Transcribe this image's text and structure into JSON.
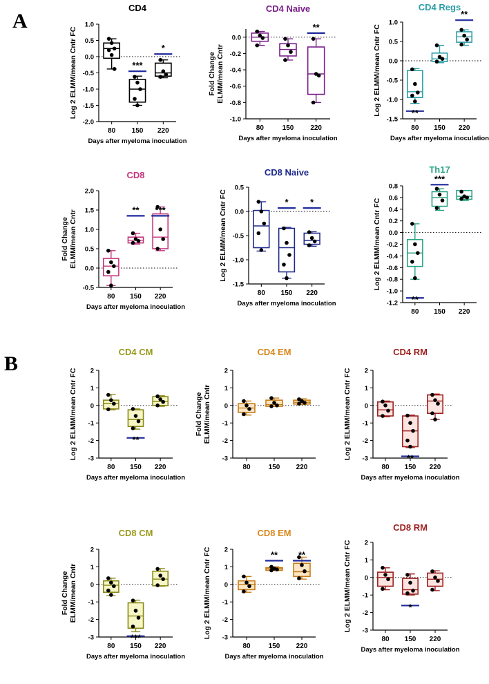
{
  "panel_labels": {
    "a": "A",
    "b": "B"
  },
  "chart_data": [
    {
      "type": "box",
      "title": "CD4",
      "title_color": "#000000",
      "box_color": "#000000",
      "fill": "#ffffff",
      "ylabel_lines": [
        "Log 2 ELMM/mean Cntr FC"
      ],
      "xlabel": "Days after myeloma inoculation",
      "categories": [
        "80",
        "150",
        "220"
      ],
      "ylim": [
        -2.0,
        1.0
      ],
      "yticks": [
        1.0,
        0.5,
        0.0,
        -0.5,
        -1.0,
        -1.5,
        -2.0
      ],
      "ytick_labels": [
        "1.0",
        "0.5",
        "0.0",
        "-0.5",
        "-1.0",
        "-1.5",
        "-2.0"
      ],
      "baseline": 0,
      "boxes": [
        {
          "min": -0.38,
          "q1": -0.05,
          "median": 0.25,
          "q3": 0.42,
          "max": 0.55,
          "points": [
            0.55,
            0.42,
            0.25,
            0.2,
            0.05,
            -0.38
          ]
        },
        {
          "min": -1.5,
          "q1": -1.4,
          "median": -1.0,
          "q3": -0.7,
          "max": -0.6,
          "points": [
            -0.62,
            -0.8,
            -1.0,
            -1.3,
            -1.5
          ]
        },
        {
          "min": -0.65,
          "q1": -0.6,
          "median": -0.5,
          "q3": -0.2,
          "max": -0.1,
          "points": [
            -0.1,
            -0.45,
            -0.55,
            -0.62
          ]
        }
      ],
      "annotations": [
        {
          "text": "***",
          "category": 1,
          "value": -0.45,
          "pos": "above"
        },
        {
          "text": "*",
          "category": 2,
          "value": 0.08,
          "pos": "above"
        }
      ]
    },
    {
      "type": "box",
      "title": "CD4 Naive",
      "title_color": "#7b1f8c",
      "box_color": "#7b1f8c",
      "fill": "#ffffff",
      "ylabel_lines": [
        "Fold Change",
        "ELMM/mean Cntr"
      ],
      "xlabel": "Days after myeloma inoculation",
      "categories": [
        "80",
        "150",
        "220"
      ],
      "ylim": [
        -1.0,
        0.1
      ],
      "yticks": [
        0.0,
        -0.2,
        -0.4,
        -0.6,
        -0.8,
        -1.0
      ],
      "ytick_labels": [
        "0.0",
        "-0.2",
        "-0.4",
        "-0.6",
        "-0.8",
        "-1.0"
      ],
      "baseline": 0,
      "boxes": [
        {
          "min": -0.1,
          "q1": -0.05,
          "median": 0.0,
          "q3": 0.05,
          "max": 0.07,
          "points": [
            0.07,
            0.02,
            -0.01,
            -0.1
          ]
        },
        {
          "min": -0.28,
          "q1": -0.23,
          "median": -0.15,
          "q3": -0.08,
          "max": -0.02,
          "points": [
            -0.02,
            -0.1,
            -0.18,
            -0.28
          ]
        },
        {
          "min": -0.8,
          "q1": -0.7,
          "median": -0.45,
          "q3": -0.12,
          "max": -0.02,
          "points": [
            -0.02,
            -0.45,
            -0.47,
            -0.8
          ]
        }
      ],
      "annotations": [
        {
          "text": "**",
          "category": 2,
          "value": 0.05,
          "pos": "above"
        }
      ]
    },
    {
      "type": "box",
      "title": "CD4 Regs",
      "title_color": "#2a9ea6",
      "box_color": "#2a9ea6",
      "fill": "#ffffff",
      "ylabel_lines": [
        "Log 2 ELMM/mean Cntr FC"
      ],
      "xlabel": "Days after myeloma inoculation",
      "categories": [
        "80",
        "150",
        "220"
      ],
      "ylim": [
        -1.5,
        1.0
      ],
      "yticks": [
        1.0,
        0.5,
        0.0,
        -0.5,
        -1.0,
        -1.5
      ],
      "ytick_labels": [
        "1.0",
        "0.5",
        "0.0",
        "-0.5",
        "-1.0",
        "-1.5"
      ],
      "baseline": 0,
      "boxes": [
        {
          "min": -1.1,
          "q1": -0.95,
          "median": -0.8,
          "q3": -0.25,
          "max": -0.2,
          "points": [
            -0.22,
            -0.6,
            -0.82,
            -0.9,
            -1.05
          ]
        },
        {
          "min": -0.05,
          "q1": -0.02,
          "median": 0.05,
          "q3": 0.2,
          "max": 0.4,
          "points": [
            0.4,
            0.1,
            0.05,
            -0.02
          ]
        },
        {
          "min": 0.4,
          "q1": 0.48,
          "median": 0.62,
          "q3": 0.75,
          "max": 0.8,
          "points": [
            0.8,
            0.65,
            0.55,
            0.42
          ]
        }
      ],
      "annotations": [
        {
          "text": "**",
          "category": 0,
          "value": -1.3,
          "pos": "below"
        },
        {
          "text": "**",
          "category": 2,
          "value": 1.05,
          "pos": "above"
        }
      ]
    },
    {
      "type": "box",
      "title": "CD8",
      "title_color": "#c2357d",
      "box_color": "#c2357d",
      "fill": "#ffffff",
      "ylabel_lines": [
        "Fold Change",
        "ELMM/mean Cntr"
      ],
      "xlabel": "Days after myeloma inoculation",
      "categories": [
        "80",
        "150",
        "220"
      ],
      "ylim": [
        -0.5,
        2.0
      ],
      "yticks": [
        2.0,
        1.5,
        1.0,
        0.5,
        0.0,
        -0.5
      ],
      "ytick_labels": [
        "2.0",
        "1.5",
        "1.0",
        "0.5",
        "0.0",
        "-0.5"
      ],
      "baseline": 0,
      "boxes": [
        {
          "min": -0.45,
          "q1": -0.2,
          "median": 0.05,
          "q3": 0.25,
          "max": 0.45,
          "points": [
            0.45,
            0.15,
            0.05,
            -0.1,
            -0.45
          ]
        },
        {
          "min": 0.62,
          "q1": 0.65,
          "median": 0.72,
          "q3": 0.8,
          "max": 0.9,
          "points": [
            0.9,
            0.75,
            0.7,
            0.65
          ]
        },
        {
          "min": 0.45,
          "q1": 0.5,
          "median": 0.8,
          "q3": 1.4,
          "max": 1.58,
          "points": [
            1.58,
            1.0,
            0.75,
            0.5
          ]
        }
      ],
      "annotations": [
        {
          "text": "**",
          "category": 1,
          "value": 1.35,
          "pos": "above"
        },
        {
          "text": "***",
          "category": 2,
          "value": 1.35,
          "pos": "above"
        }
      ]
    },
    {
      "type": "box",
      "title": "CD8 Naive",
      "title_color": "#1f2a8c",
      "box_color": "#1f2a8c",
      "fill": "#ffffff",
      "ylabel_lines": [
        "Log 2 ELMM/mean Cntr FC"
      ],
      "xlabel": "Days after myeloma inoculation",
      "categories": [
        "80",
        "150",
        "220"
      ],
      "ylim": [
        -1.5,
        0.5
      ],
      "yticks": [
        0.5,
        0.0,
        -0.5,
        -1.0,
        -1.5
      ],
      "ytick_labels": [
        "0.5",
        "0.0",
        "-0.5",
        "-1.0",
        "-1.5"
      ],
      "baseline": 0,
      "boxes": [
        {
          "min": -0.82,
          "q1": -0.75,
          "median": -0.3,
          "q3": 0.02,
          "max": 0.2,
          "points": [
            0.2,
            0.0,
            -0.25,
            -0.45,
            -0.8
          ]
        },
        {
          "min": -1.38,
          "q1": -1.25,
          "median": -0.75,
          "q3": -0.35,
          "max": -0.33,
          "points": [
            -0.35,
            -0.65,
            -0.9,
            -1.1,
            -1.38
          ]
        },
        {
          "min": -0.72,
          "q1": -0.68,
          "median": -0.6,
          "q3": -0.45,
          "max": -0.42,
          "points": [
            -0.43,
            -0.55,
            -0.62,
            -0.7
          ]
        }
      ],
      "annotations": [
        {
          "text": "*",
          "category": 1,
          "value": 0.07,
          "pos": "above"
        },
        {
          "text": "*",
          "category": 2,
          "value": 0.07,
          "pos": "above"
        }
      ]
    },
    {
      "type": "box",
      "title": "Th17",
      "title_color": "#29a384",
      "box_color": "#29a384",
      "fill": "#ffffff",
      "ylabel_lines": [
        "Log 2 ELMM/mean Cntr FC"
      ],
      "xlabel": "",
      "categories": [
        "80",
        "150",
        "220"
      ],
      "ylim": [
        -1.2,
        0.8
      ],
      "yticks": [
        0.8,
        0.6,
        0.4,
        0.2,
        0.0,
        -0.2,
        -0.4,
        -0.6,
        -0.8,
        -1.0,
        -1.2
      ],
      "ytick_labels": [
        "0.8",
        "0.6",
        "0.4",
        "0.2",
        "0.0",
        "-0.2",
        "-0.4",
        "-0.6",
        "-0.8",
        "-1.0",
        "-1.2"
      ],
      "baseline": 0,
      "boxes": [
        {
          "min": -0.8,
          "q1": -0.58,
          "median": -0.35,
          "q3": -0.12,
          "max": 0.15,
          "points": [
            0.15,
            -0.2,
            -0.35,
            -0.5,
            -0.78
          ]
        },
        {
          "min": 0.38,
          "q1": 0.45,
          "median": 0.6,
          "q3": 0.7,
          "max": 0.75,
          "points": [
            0.75,
            0.65,
            0.55,
            0.42
          ]
        },
        {
          "min": 0.55,
          "q1": 0.57,
          "median": 0.62,
          "q3": 0.72,
          "max": 0.72,
          "points": [
            0.7,
            0.62,
            0.6,
            0.58
          ]
        }
      ],
      "annotations": [
        {
          "text": "**",
          "category": 0,
          "value": -1.12,
          "pos": "below"
        },
        {
          "text": "***",
          "category": 1,
          "value": 0.82,
          "pos": "above"
        }
      ]
    },
    {
      "type": "box",
      "title": "CD4 CM",
      "title_color": "#9a9a1e",
      "box_color": "#8a8a18",
      "fill": "#f7f6c8",
      "ylabel_lines": [
        "Log 2 ELMM/mean Cntr FC"
      ],
      "xlabel": "Days after myeloma inoculation",
      "categories": [
        "80",
        "150",
        "220"
      ],
      "ylim": [
        -3,
        2
      ],
      "yticks": [
        2,
        1,
        0,
        -1,
        -2,
        -3
      ],
      "ytick_labels": [
        "2",
        "1",
        "0",
        "-1",
        "-2",
        "-3"
      ],
      "baseline": 0,
      "boxes": [
        {
          "min": -0.25,
          "q1": -0.2,
          "median": 0.1,
          "q3": 0.3,
          "max": 0.62,
          "points": [
            0.6,
            0.3,
            0.1,
            -0.22
          ]
        },
        {
          "min": -1.35,
          "q1": -1.2,
          "median": -0.8,
          "q3": -0.25,
          "max": -0.2,
          "points": [
            -0.2,
            -0.6,
            -0.9,
            -1.3
          ]
        },
        {
          "min": -0.05,
          "q1": 0.0,
          "median": 0.22,
          "q3": 0.5,
          "max": 0.55,
          "points": [
            0.52,
            0.35,
            0.2,
            0.0
          ]
        }
      ],
      "annotations": [
        {
          "text": "**",
          "category": 1,
          "value": -1.85,
          "pos": "below"
        }
      ]
    },
    {
      "type": "box",
      "title": "CD4 EM",
      "title_color": "#d9891e",
      "box_color": "#c77d18",
      "fill": "#fbe6c6",
      "ylabel_lines": [
        "Fold Change",
        "ELMM/mean Cntr"
      ],
      "xlabel": "",
      "categories": [
        "80",
        "150",
        "220"
      ],
      "ylim": [
        -3,
        2
      ],
      "yticks": [
        2,
        1,
        0,
        -1,
        -2,
        -3
      ],
      "ytick_labels": [
        "2",
        "1",
        "0",
        "-1",
        "-2",
        "-3"
      ],
      "baseline": 0,
      "boxes": [
        {
          "min": -0.55,
          "q1": -0.4,
          "median": -0.15,
          "q3": 0.1,
          "max": 0.25,
          "points": [
            0.25,
            0.0,
            -0.2,
            -0.5
          ]
        },
        {
          "min": -0.05,
          "q1": -0.05,
          "median": 0.05,
          "q3": 0.3,
          "max": 0.42,
          "points": [
            0.42,
            0.15,
            0.0,
            -0.05
          ]
        },
        {
          "min": 0.05,
          "q1": 0.08,
          "median": 0.18,
          "q3": 0.3,
          "max": 0.38,
          "points": [
            0.35,
            0.25,
            0.15,
            0.1
          ]
        }
      ],
      "annotations": []
    },
    {
      "type": "box",
      "title": "CD4 RM",
      "title_color": "#9e2020",
      "box_color": "#9e2020",
      "fill": "#fde4e0",
      "ylabel_lines": [
        "Log 2 ELMM/mean Cntr FC"
      ],
      "xlabel": "Days after myeloma inoculation",
      "categories": [
        "80",
        "150",
        "220"
      ],
      "ylim": [
        -3,
        2
      ],
      "yticks": [
        2,
        1,
        0,
        -1,
        -2,
        -3
      ],
      "ytick_labels": [
        "2",
        "1",
        "0",
        "-1",
        "-2",
        "-3"
      ],
      "baseline": 0,
      "boxes": [
        {
          "min": -0.65,
          "q1": -0.6,
          "median": -0.25,
          "q3": 0.2,
          "max": 0.25,
          "points": [
            0.22,
            0.0,
            -0.3,
            -0.6
          ]
        },
        {
          "min": -2.4,
          "q1": -2.35,
          "median": -1.45,
          "q3": -0.6,
          "max": -0.55,
          "points": [
            -0.58,
            -1.0,
            -1.45,
            -2.0,
            -2.35
          ]
        },
        {
          "min": -0.8,
          "q1": -0.45,
          "median": 0.25,
          "q3": 0.6,
          "max": 0.65,
          "points": [
            0.6,
            0.3,
            0.1,
            -0.45,
            -0.8
          ]
        }
      ],
      "annotations": [
        {
          "text": "**",
          "category": 1,
          "value": -2.9,
          "pos": "below"
        }
      ]
    },
    {
      "type": "box",
      "title": "CD8 CM",
      "title_color": "#9a9a1e",
      "box_color": "#8a8a18",
      "fill": "#f7f6c8",
      "ylabel_lines": [
        "Fold Change",
        "ELMM/mean Cntr"
      ],
      "xlabel": "Days after myeloma inoculation",
      "categories": [
        "80",
        "150",
        "220"
      ],
      "ylim": [
        -3,
        2
      ],
      "yticks": [
        2,
        1,
        0,
        -1,
        -2,
        -3
      ],
      "ytick_labels": [
        "2",
        "1",
        "0",
        "-1",
        "-2",
        "-3"
      ],
      "baseline": 0,
      "boxes": [
        {
          "min": -0.65,
          "q1": -0.45,
          "median": -0.05,
          "q3": 0.2,
          "max": 0.35,
          "points": [
            0.35,
            0.1,
            -0.1,
            -0.35,
            -0.6
          ]
        },
        {
          "min": -2.7,
          "q1": -2.5,
          "median": -1.8,
          "q3": -1.05,
          "max": -0.9,
          "points": [
            -0.92,
            -1.5,
            -1.9,
            -2.4
          ]
        },
        {
          "min": -0.1,
          "q1": -0.08,
          "median": 0.3,
          "q3": 0.75,
          "max": 0.9,
          "points": [
            0.88,
            0.5,
            0.3,
            -0.05
          ]
        }
      ],
      "annotations": [
        {
          "text": "***",
          "category": 1,
          "value": -2.95,
          "pos": "below"
        }
      ]
    },
    {
      "type": "box",
      "title": "CD8 EM",
      "title_color": "#d9891e",
      "box_color": "#c77d18",
      "fill": "#fbe6c6",
      "ylabel_lines": [
        "Log 2 ELMM/mean Cntr FC"
      ],
      "xlabel": "Days after myeloma inoculation",
      "categories": [
        "80",
        "150",
        "220"
      ],
      "ylim": [
        -3,
        2
      ],
      "yticks": [
        2,
        1,
        0,
        -1,
        -2,
        -3
      ],
      "ytick_labels": [
        "2",
        "1",
        "0",
        "-1",
        "-2",
        "-3"
      ],
      "baseline": 0,
      "boxes": [
        {
          "min": -0.45,
          "q1": -0.3,
          "median": 0.0,
          "q3": 0.2,
          "max": 0.45,
          "points": [
            0.45,
            0.1,
            -0.1,
            -0.4
          ]
        },
        {
          "min": 0.78,
          "q1": 0.8,
          "median": 0.88,
          "q3": 0.95,
          "max": 1.0,
          "points": [
            1.0,
            0.9,
            0.85,
            0.8
          ]
        },
        {
          "min": 0.3,
          "q1": 0.45,
          "median": 0.72,
          "q3": 1.2,
          "max": 1.55,
          "points": [
            1.55,
            1.1,
            0.75,
            0.35
          ]
        }
      ],
      "annotations": [
        {
          "text": "**",
          "category": 1,
          "value": 1.35,
          "pos": "above"
        },
        {
          "text": "**",
          "category": 2,
          "value": 1.35,
          "pos": "above"
        }
      ]
    },
    {
      "type": "box",
      "title": "CD8 RM",
      "title_color": "#9e2020",
      "box_color": "#9e2020",
      "fill": "#fde4e0",
      "ylabel_lines": [
        "Log 2 ELMM/mean Cntr FC"
      ],
      "xlabel": "Days after myeloma inoculation",
      "categories": [
        "80",
        "150",
        "220"
      ],
      "ylim": [
        -3,
        2
      ],
      "yticks": [
        2,
        1,
        0,
        -1,
        -2,
        -3
      ],
      "ytick_labels": [
        "2",
        "1",
        "0",
        "-1",
        "-2",
        "-3"
      ],
      "baseline": 0,
      "boxes": [
        {
          "min": -0.7,
          "q1": -0.5,
          "median": 0.0,
          "q3": 0.3,
          "max": 0.55,
          "points": [
            0.55,
            0.15,
            -0.1,
            -0.65
          ]
        },
        {
          "min": -1.0,
          "q1": -0.95,
          "median": -0.7,
          "q3": -0.05,
          "max": 0.2,
          "points": [
            0.15,
            -0.3,
            -0.75,
            -0.9
          ]
        },
        {
          "min": -0.75,
          "q1": -0.5,
          "median": -0.1,
          "q3": 0.25,
          "max": 0.38,
          "points": [
            0.35,
            0.0,
            -0.2,
            -0.7
          ]
        }
      ],
      "annotations": [
        {
          "text": "*",
          "category": 1,
          "value": -1.6,
          "pos": "below"
        }
      ]
    }
  ]
}
